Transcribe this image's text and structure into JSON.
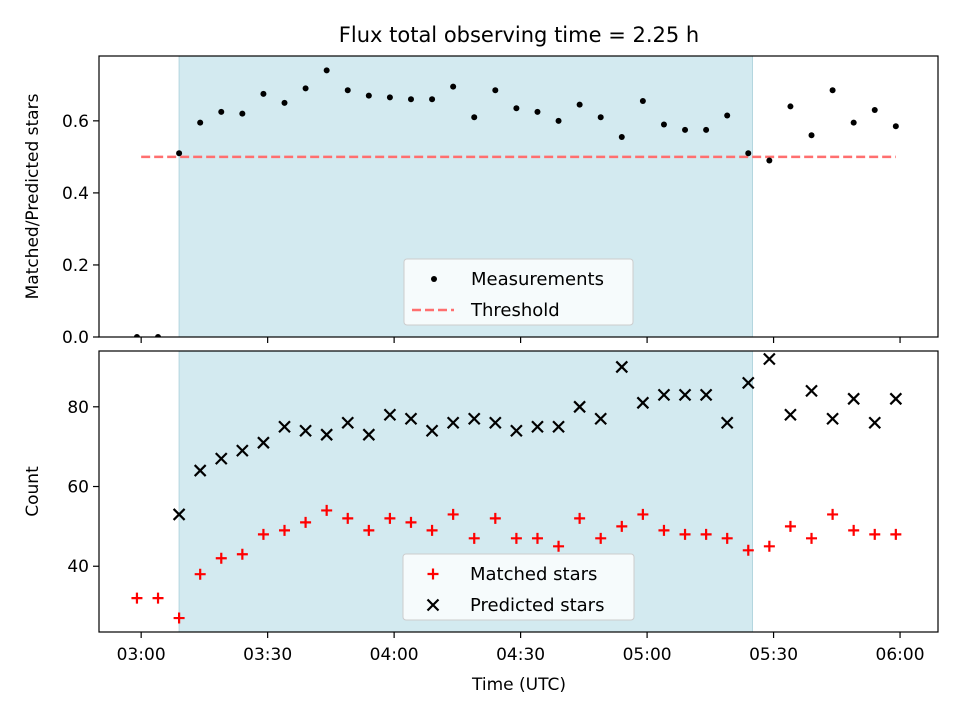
{
  "chart_data": {
    "type": "scatter",
    "title": "Flux total observing time = 2.25 h",
    "xlabel": "Time (UTC)",
    "x_ticks": [
      "03:00",
      "03:30",
      "04:00",
      "04:30",
      "05:00",
      "05:30",
      "06:00"
    ],
    "x_tick_minutes": [
      0,
      30,
      60,
      90,
      120,
      150,
      180
    ],
    "xlim_minutes_after_0300": [
      -10,
      189
    ],
    "highlight_span_minutes": [
      9,
      145
    ],
    "colors": {
      "highlight": "#d3eaf0",
      "threshold": "#ff6f6f",
      "matched": "#ff0000",
      "predicted": "#000000",
      "measurements": "#000000"
    },
    "panels": [
      {
        "ylabel": "Matched/Predicted stars",
        "ylim": [
          0,
          0.78
        ],
        "y_ticks": [
          "0.0",
          "0.2",
          "0.4",
          "0.6"
        ],
        "y_tick_values": [
          0,
          0.2,
          0.4,
          0.6
        ],
        "legend": {
          "placement": "lower center",
          "entries": [
            "Measurements",
            "Threshold"
          ]
        },
        "threshold": {
          "name": "Threshold",
          "y": 0.5,
          "x_range_minutes": [
            0,
            179
          ]
        },
        "series": [
          {
            "name": "Measurements",
            "marker": "dot",
            "x_minutes": [
              -1,
              4,
              9,
              14,
              19,
              24,
              29,
              34,
              39,
              44,
              49,
              54,
              59,
              64,
              69,
              74,
              79,
              84,
              89,
              94,
              99,
              104,
              109,
              114,
              119,
              124,
              129,
              134,
              139,
              144,
              149,
              154,
              159,
              164,
              169,
              174,
              179
            ],
            "values": [
              0.0,
              0.0,
              0.51,
              0.595,
              0.625,
              0.62,
              0.675,
              0.65,
              0.69,
              0.74,
              0.685,
              0.67,
              0.665,
              0.66,
              0.66,
              0.695,
              0.61,
              0.685,
              0.635,
              0.625,
              0.6,
              0.645,
              0.61,
              0.555,
              0.655,
              0.59,
              0.575,
              0.575,
              0.615,
              0.51,
              0.49,
              0.64,
              0.56,
              0.685,
              0.595,
              0.63,
              0.585
            ]
          }
        ]
      },
      {
        "ylabel": "Count",
        "ylim": [
          23.5,
          94
        ],
        "y_ticks": [
          "40",
          "60",
          "80"
        ],
        "y_tick_values": [
          40,
          60,
          80
        ],
        "legend": {
          "placement": "lower center",
          "entries": [
            "Matched stars",
            "Predicted stars"
          ]
        },
        "series": [
          {
            "name": "Matched stars",
            "marker": "plus",
            "x_minutes": [
              -1,
              4,
              9,
              14,
              19,
              24,
              29,
              34,
              39,
              44,
              49,
              54,
              59,
              64,
              69,
              74,
              79,
              84,
              89,
              94,
              99,
              104,
              109,
              114,
              119,
              124,
              129,
              134,
              139,
              144,
              149,
              154,
              159,
              164,
              169,
              174,
              179
            ],
            "values": [
              32,
              32,
              27,
              38,
              42,
              43,
              48,
              49,
              51,
              54,
              52,
              49,
              52,
              51,
              49,
              53,
              47,
              52,
              47,
              47,
              45,
              52,
              47,
              50,
              53,
              49,
              48,
              48,
              47,
              44,
              45,
              50,
              47,
              53,
              49,
              48,
              48
            ]
          },
          {
            "name": "Predicted stars",
            "marker": "x",
            "x_minutes": [
              9,
              14,
              19,
              24,
              29,
              34,
              39,
              44,
              49,
              54,
              59,
              64,
              69,
              74,
              79,
              84,
              89,
              94,
              99,
              104,
              109,
              114,
              119,
              124,
              129,
              134,
              139,
              144,
              149,
              154,
              159,
              164,
              169,
              174,
              179
            ],
            "values": [
              53,
              64,
              67,
              69,
              71,
              75,
              74,
              73,
              76,
              73,
              78,
              77,
              74,
              76,
              77,
              76,
              74,
              75,
              75,
              80,
              77,
              90,
              81,
              83,
              83,
              83,
              76,
              86,
              92,
              78,
              84,
              77,
              82,
              76,
              82
            ]
          }
        ]
      }
    ]
  }
}
